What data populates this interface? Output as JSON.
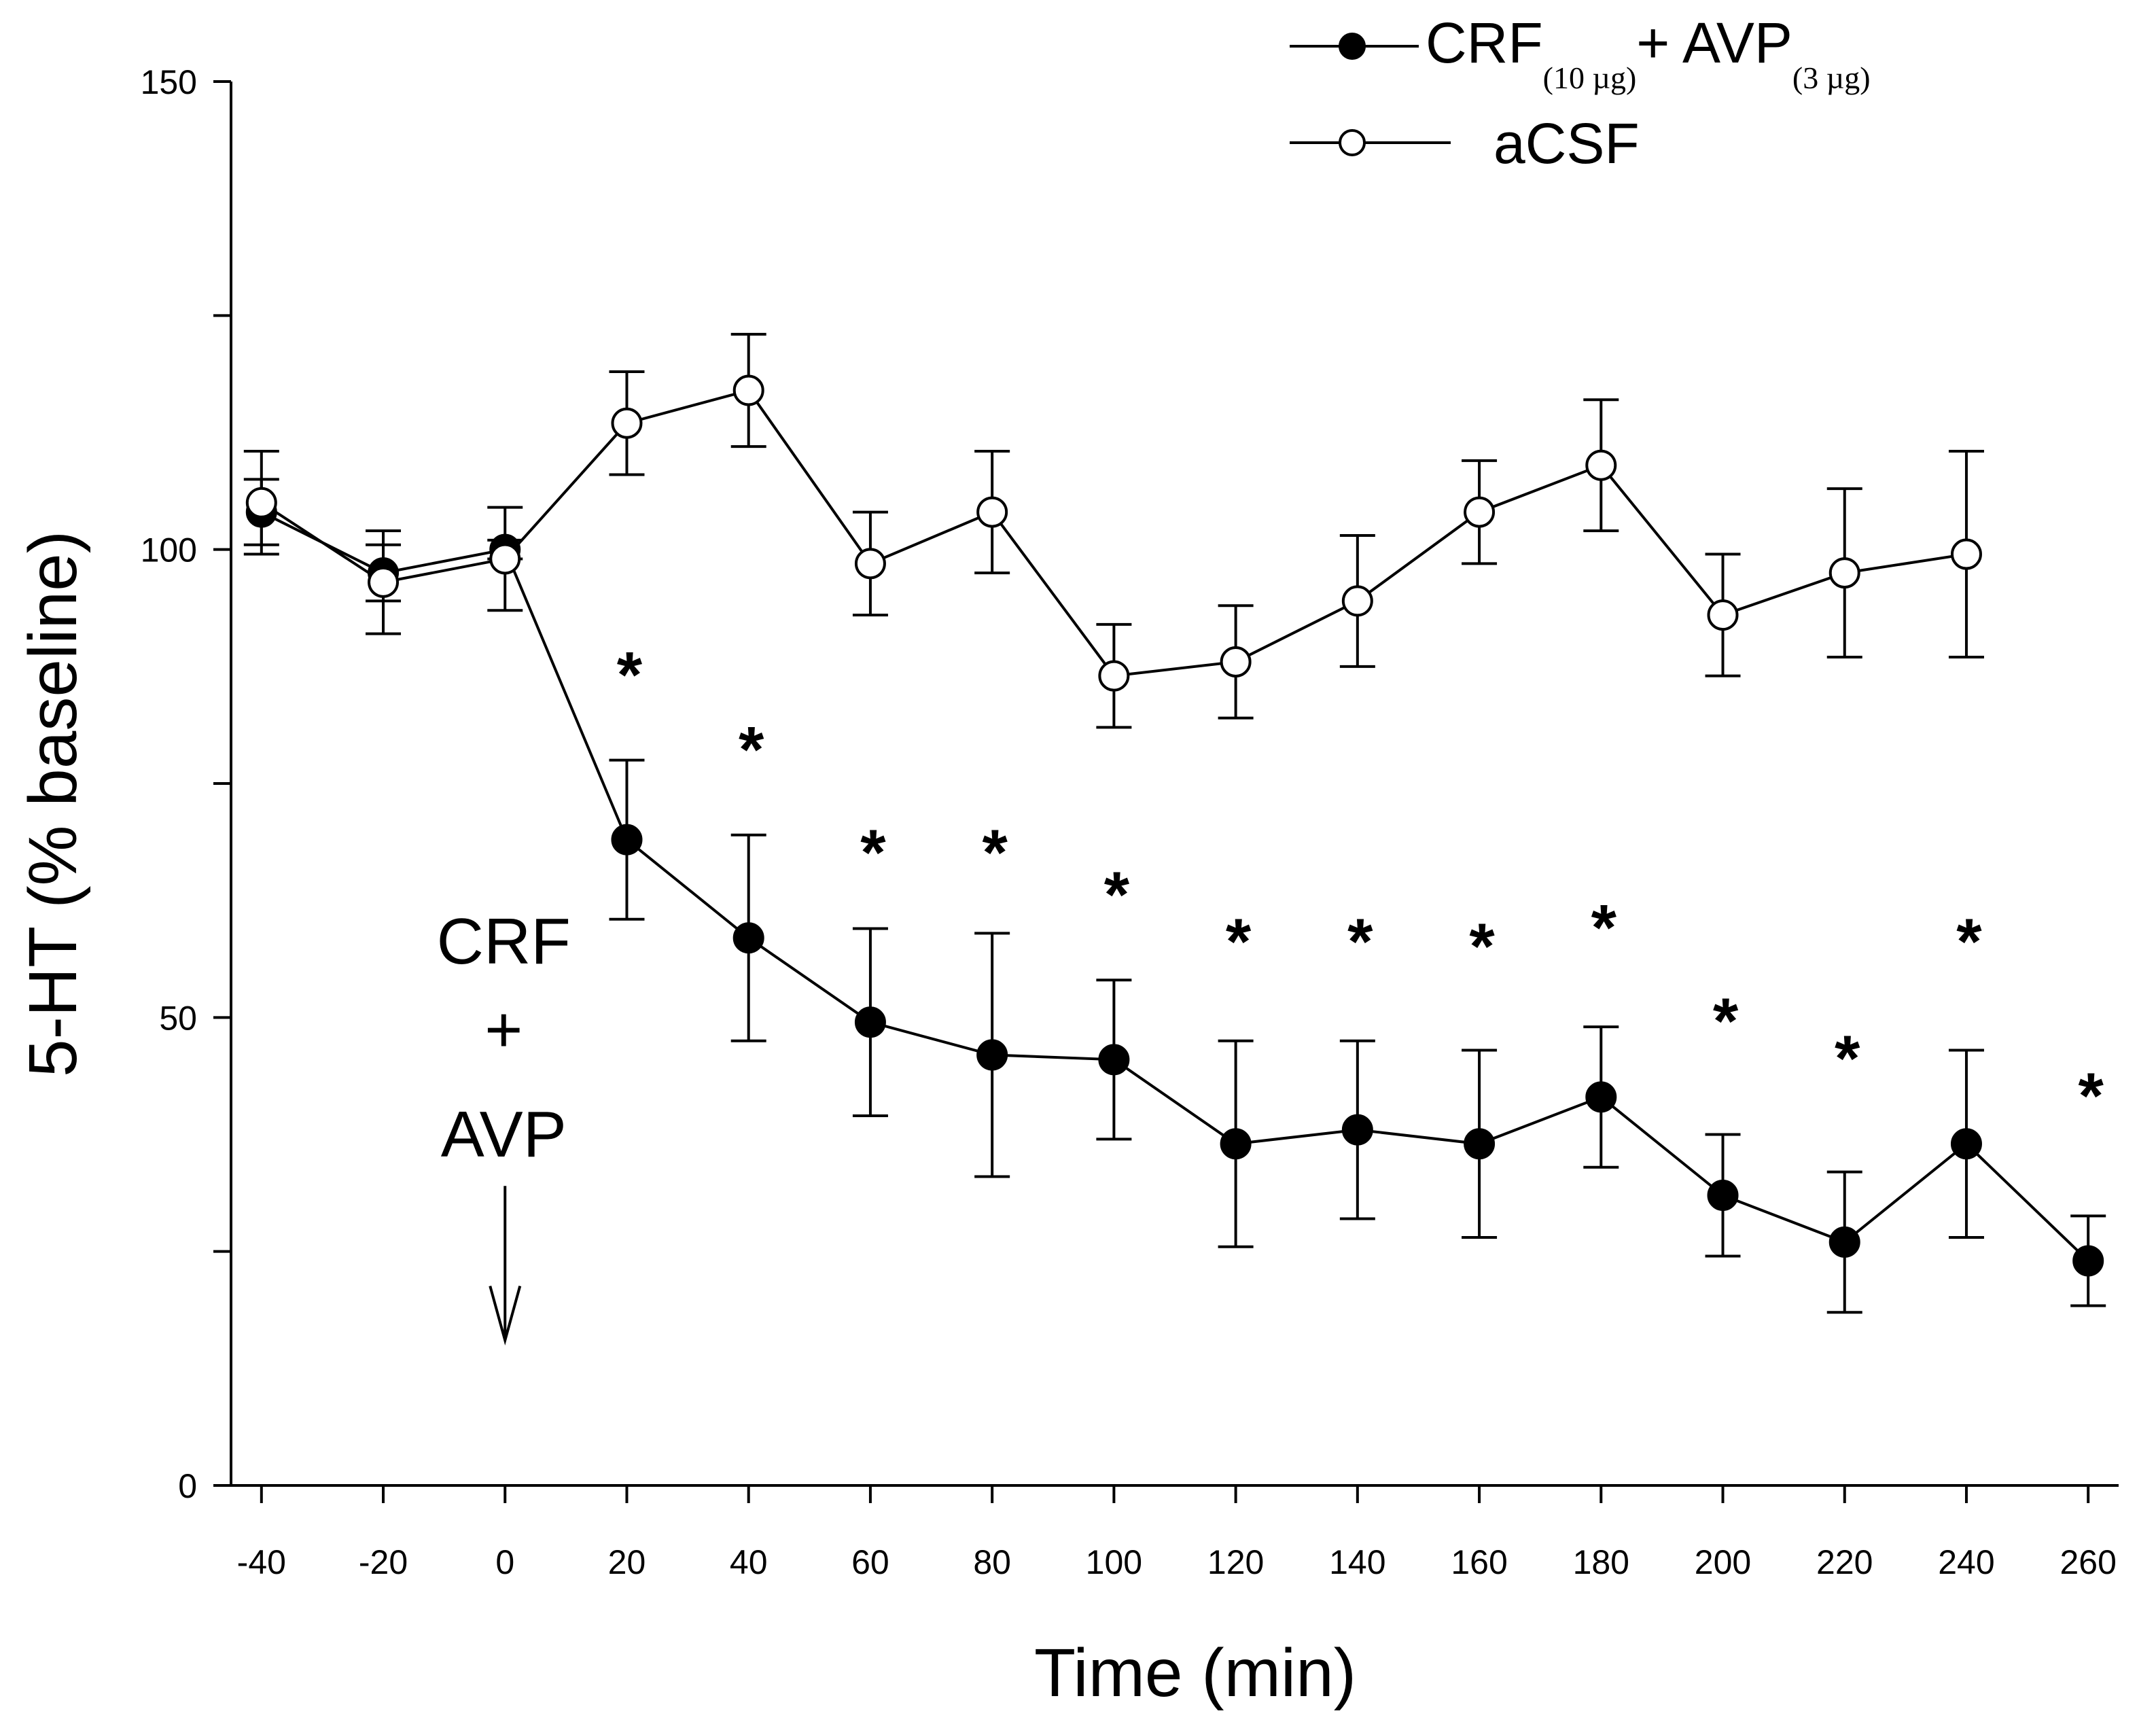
{
  "chart_data": {
    "type": "line",
    "title": "",
    "xlabel": "Time (min)",
    "ylabel": "5-HT (% baseline)",
    "xlim": [
      -45,
      265
    ],
    "ylim": [
      0,
      150
    ],
    "x_ticks": [
      -40,
      -20,
      0,
      20,
      40,
      60,
      80,
      100,
      120,
      140,
      160,
      180,
      200,
      220,
      240,
      260
    ],
    "y_ticks_labeled": [
      0,
      50,
      100,
      150
    ],
    "y_ticks_minor": [
      25,
      75,
      125
    ],
    "grid": false,
    "legend_position": "top-right",
    "legend": [
      {
        "marker": "filled-circle",
        "label": "CRF",
        "sub1": "(10 µg)",
        "mid": "+ AVP",
        "sub2": "(3 µg)"
      },
      {
        "marker": "open-circle",
        "label": "aCSF"
      }
    ],
    "series": [
      {
        "name": "CRF(10 µg) + AVP(3 µg)",
        "marker": "filled",
        "x": [
          -40,
          -20,
          0,
          20,
          40,
          60,
          80,
          100,
          120,
          140,
          160,
          180,
          200,
          220,
          240,
          260
        ],
        "y": [
          104,
          97.5,
          100,
          69,
          58.5,
          49.5,
          46,
          45.5,
          36.5,
          38,
          36.5,
          41.5,
          31,
          26,
          36.5,
          24
        ],
        "err": [
          3.5,
          3,
          1,
          8.5,
          11,
          10,
          13,
          8.5,
          11,
          9.5,
          10,
          7.5,
          6.5,
          7.5,
          10,
          4.8
        ]
      },
      {
        "name": "aCSF",
        "marker": "open",
        "x": [
          -40,
          -20,
          0,
          20,
          40,
          60,
          80,
          100,
          120,
          140,
          160,
          180,
          200,
          220,
          240
        ],
        "y": [
          105,
          96.5,
          99,
          113.5,
          117,
          98.5,
          104,
          86.5,
          88,
          94.5,
          104,
          109,
          93,
          97.5,
          99.5
        ],
        "err": [
          5.5,
          5.5,
          5.5,
          5.5,
          6,
          5.5,
          6.5,
          5.5,
          6,
          7,
          5.5,
          7,
          6.5,
          9,
          11
        ]
      }
    ],
    "significance": {
      "symbol": "*",
      "points": [
        {
          "x": 20,
          "y": 88
        },
        {
          "x": 40,
          "y": 80
        },
        {
          "x": 60,
          "y": 69
        },
        {
          "x": 80,
          "y": 69
        },
        {
          "x": 100,
          "y": 64.5
        },
        {
          "x": 120,
          "y": 59.5
        },
        {
          "x": 140,
          "y": 59.5
        },
        {
          "x": 160,
          "y": 59
        },
        {
          "x": 180,
          "y": 61
        },
        {
          "x": 200,
          "y": 51
        },
        {
          "x": 220,
          "y": 47
        },
        {
          "x": 240,
          "y": 59.5
        },
        {
          "x": 260,
          "y": 43
        }
      ]
    },
    "annotation": {
      "lines": [
        "CRF",
        "+",
        "AVP"
      ],
      "arrow_at_x": 0,
      "arrow_from_y": 32,
      "arrow_to_y": 15.5
    }
  }
}
